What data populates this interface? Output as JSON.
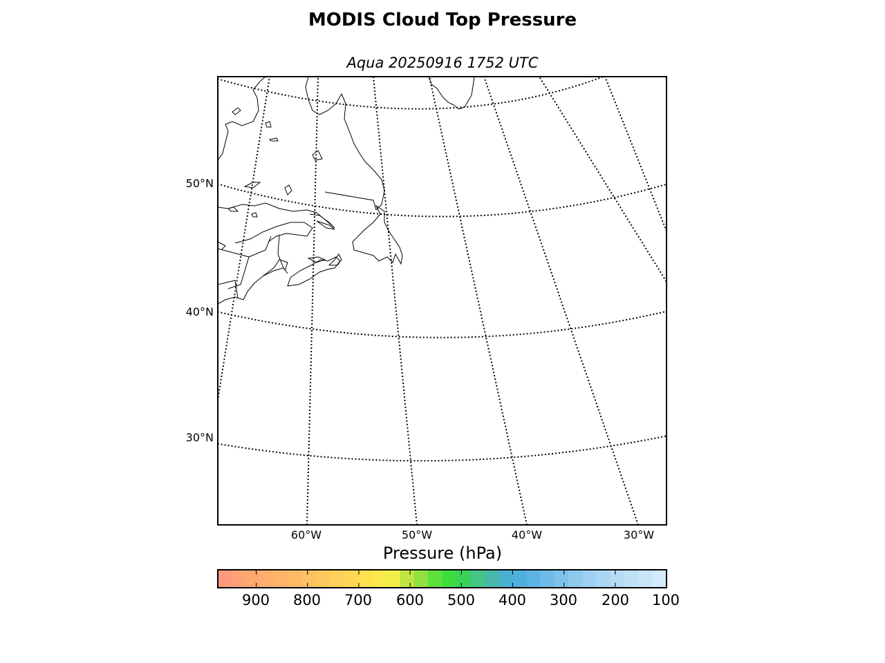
{
  "title": "MODIS Cloud Top Pressure",
  "subtitle": "Aqua 20250916 1752 UTC",
  "map": {
    "projection": "lambert-conformal",
    "lat_labels": [
      "50°N",
      "40°N",
      "30°N"
    ],
    "lon_labels": [
      "60°W",
      "50°W",
      "40°W",
      "30°W"
    ],
    "grid_style": "dotted",
    "coastline_color": "#000000",
    "regions_shown": [
      "Greenland (southern tip)",
      "Labrador",
      "Newfoundland",
      "Nova Scotia",
      "New Brunswick",
      "Quebec",
      "Gulf of St. Lawrence",
      "Atlantic Ocean"
    ]
  },
  "colorbar": {
    "label": "Pressure (hPa)",
    "tick_labels": [
      "900",
      "800",
      "700",
      "600",
      "500",
      "400",
      "300",
      "200",
      "100"
    ],
    "range": [
      975,
      100
    ],
    "colors": [
      "#ff9a7e",
      "#ffa376",
      "#ffa870",
      "#ffae6c",
      "#ffb46a",
      "#ffba66",
      "#ffc162",
      "#ffc85e",
      "#ffd05a",
      "#ffd755",
      "#ffe04f",
      "#f9e94a",
      "#f4ee48",
      "#bde640",
      "#90e03e",
      "#5fe03c",
      "#3fdc40",
      "#3ad158",
      "#43c584",
      "#48b8a8",
      "#49b0d0",
      "#4faee0",
      "#5cb4e6",
      "#6ebae8",
      "#7ec2ec",
      "#8ec9ee",
      "#9dd0f2",
      "#abd6f4",
      "#b6dcf6",
      "#bfe1f7",
      "#c8e6f9",
      "#d2ecfb"
    ]
  }
}
